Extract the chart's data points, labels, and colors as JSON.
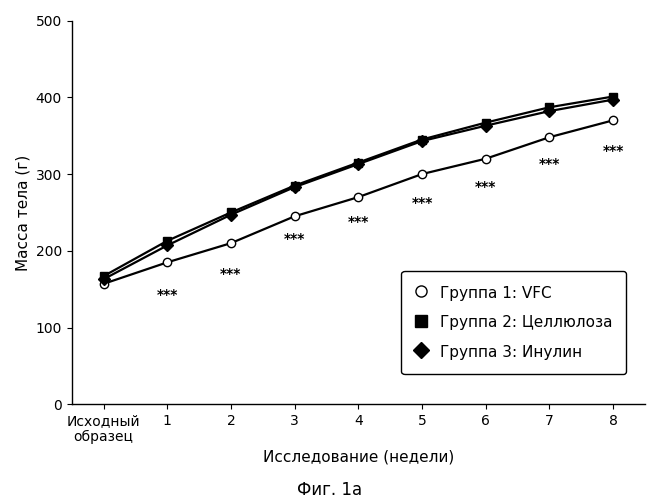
{
  "title": "Фиг. 1а",
  "ylabel": "Масса тела (г)",
  "xlabel": "Исследование (недели)",
  "xlim": [
    -0.5,
    8.5
  ],
  "ylim": [
    0,
    500
  ],
  "yticks": [
    0,
    100,
    200,
    300,
    400,
    500
  ],
  "xtick_labels": [
    "Исходный\nобразец",
    "1",
    "2",
    "3",
    "4",
    "5",
    "6",
    "7",
    "8"
  ],
  "xtick_positions": [
    0,
    1,
    2,
    3,
    4,
    5,
    6,
    7,
    8
  ],
  "group1": {
    "label": "Группа 1: VFC",
    "x": [
      0,
      1,
      2,
      3,
      4,
      5,
      6,
      7,
      8
    ],
    "y": [
      157,
      185,
      210,
      245,
      270,
      300,
      320,
      348,
      370
    ],
    "marker": "o",
    "markerfacecolor": "white",
    "color": "black",
    "markersize": 6
  },
  "group2": {
    "label": "Группа 2: Целлюлоза",
    "x": [
      0,
      1,
      2,
      3,
      4,
      5,
      6,
      7,
      8
    ],
    "y": [
      167,
      213,
      250,
      285,
      315,
      345,
      367,
      387,
      401
    ],
    "marker": "s",
    "markerfacecolor": "black",
    "color": "black",
    "markersize": 6
  },
  "group3": {
    "label": "Группа 3: Инулин",
    "x": [
      0,
      1,
      2,
      3,
      4,
      5,
      6,
      7,
      8
    ],
    "y": [
      163,
      207,
      247,
      283,
      313,
      343,
      363,
      382,
      397
    ],
    "marker": "D",
    "markerfacecolor": "black",
    "color": "black",
    "markersize": 6
  },
  "annotations": {
    "stars": "***",
    "positions": [
      [
        1,
        143
      ],
      [
        2,
        170
      ],
      [
        3,
        215
      ],
      [
        4,
        238
      ],
      [
        5,
        262
      ],
      [
        6,
        283
      ],
      [
        7,
        313
      ],
      [
        8,
        330
      ]
    ]
  },
  "background_color": "white",
  "linewidth": 1.6,
  "fontsize_title": 12,
  "fontsize_axis": 11,
  "fontsize_ticks": 10,
  "fontsize_legend": 11,
  "fontsize_stars": 10
}
